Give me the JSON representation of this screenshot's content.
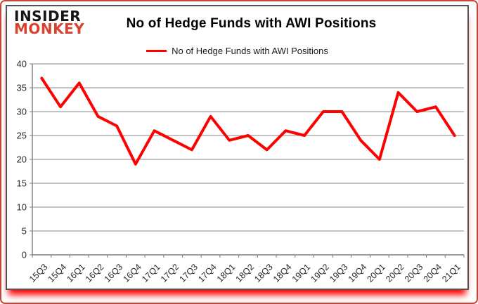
{
  "logo": {
    "line1": "INSIDER",
    "line2": "MONKEY",
    "color_top": "#151515",
    "color_bottom": "#d8422e"
  },
  "header": {
    "title": "No of Hedge Funds with AWI Positions"
  },
  "legend": {
    "label": "No of Hedge Funds with AWI Positions",
    "marker_color": "#ff0000"
  },
  "colors": {
    "line": "#ff0000",
    "grid": "#878787",
    "axis": "#7f7f7f",
    "tick_text": "#2b2b2b",
    "frame_red": "#c3473b",
    "card_border": "#545454"
  },
  "chart_data": {
    "type": "line",
    "title": "No of Hedge Funds with AWI Positions",
    "legend_label": "No of Hedge Funds with AWI Positions",
    "legend_position": "top-center",
    "grid": true,
    "xlabel": "",
    "ylabel": "",
    "ylim": [
      0,
      40
    ],
    "yticks": [
      0,
      5,
      10,
      15,
      20,
      25,
      30,
      35,
      40
    ],
    "categories": [
      "15Q3",
      "15Q4",
      "16Q1",
      "16Q2",
      "16Q3",
      "16Q4",
      "17Q1",
      "17Q2",
      "17Q3",
      "17Q4",
      "18Q1",
      "18Q2",
      "18Q3",
      "18Q4",
      "19Q1",
      "19Q2",
      "19Q3",
      "19Q4",
      "20Q1",
      "20Q2",
      "20Q3",
      "20Q4",
      "21Q1"
    ],
    "series": [
      {
        "name": "No of Hedge Funds with AWI Positions",
        "color": "#ff0000",
        "values": [
          37,
          31,
          36,
          29,
          27,
          19,
          26,
          24,
          22,
          29,
          24,
          25,
          22,
          26,
          25,
          30,
          30,
          24,
          20,
          34,
          30,
          31,
          25
        ]
      }
    ]
  }
}
